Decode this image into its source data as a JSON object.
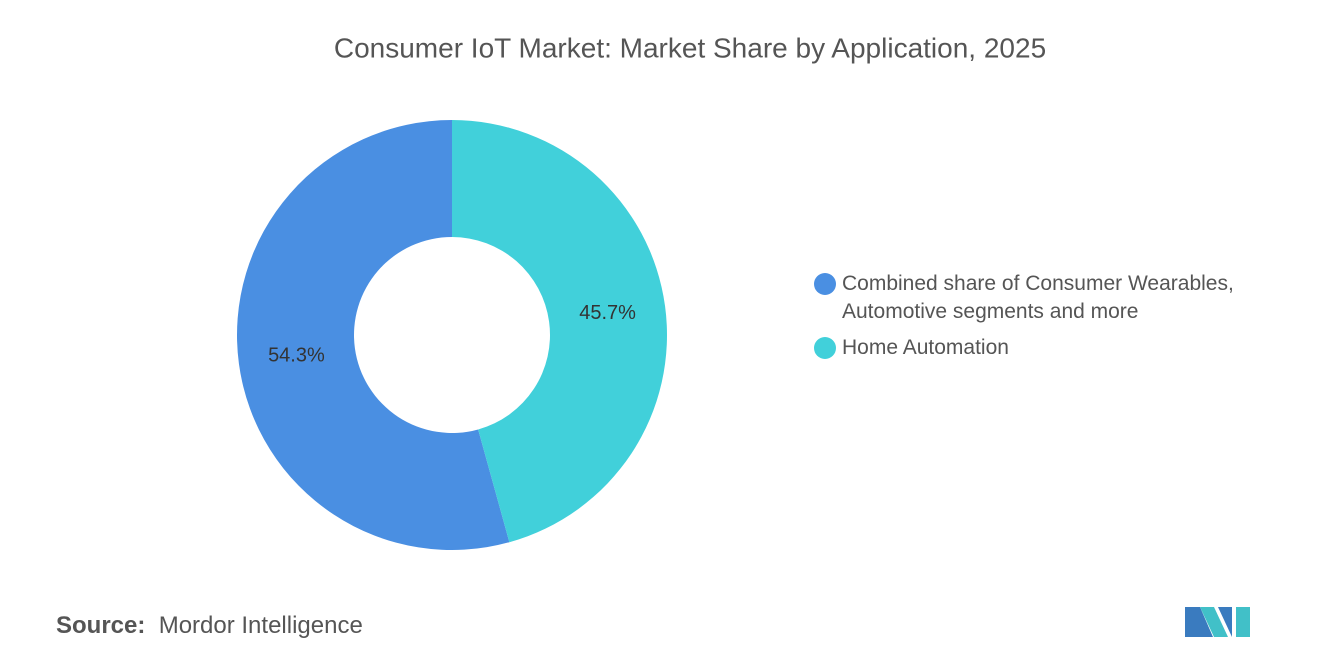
{
  "chart_data": {
    "type": "donut",
    "title": "Consumer IoT Market: Market Share by Application, 2025",
    "categories": [
      "Combined share of Consumer Wearables, Automotive segments and more",
      "Home Automation"
    ],
    "values": [
      54.3,
      45.7
    ],
    "value_labels": [
      "54.3%",
      "45.7%"
    ],
    "colors": [
      "#4a8fe2",
      "#41d0da"
    ]
  },
  "source": {
    "label": "Source:",
    "text": "Mordor Intelligence"
  }
}
